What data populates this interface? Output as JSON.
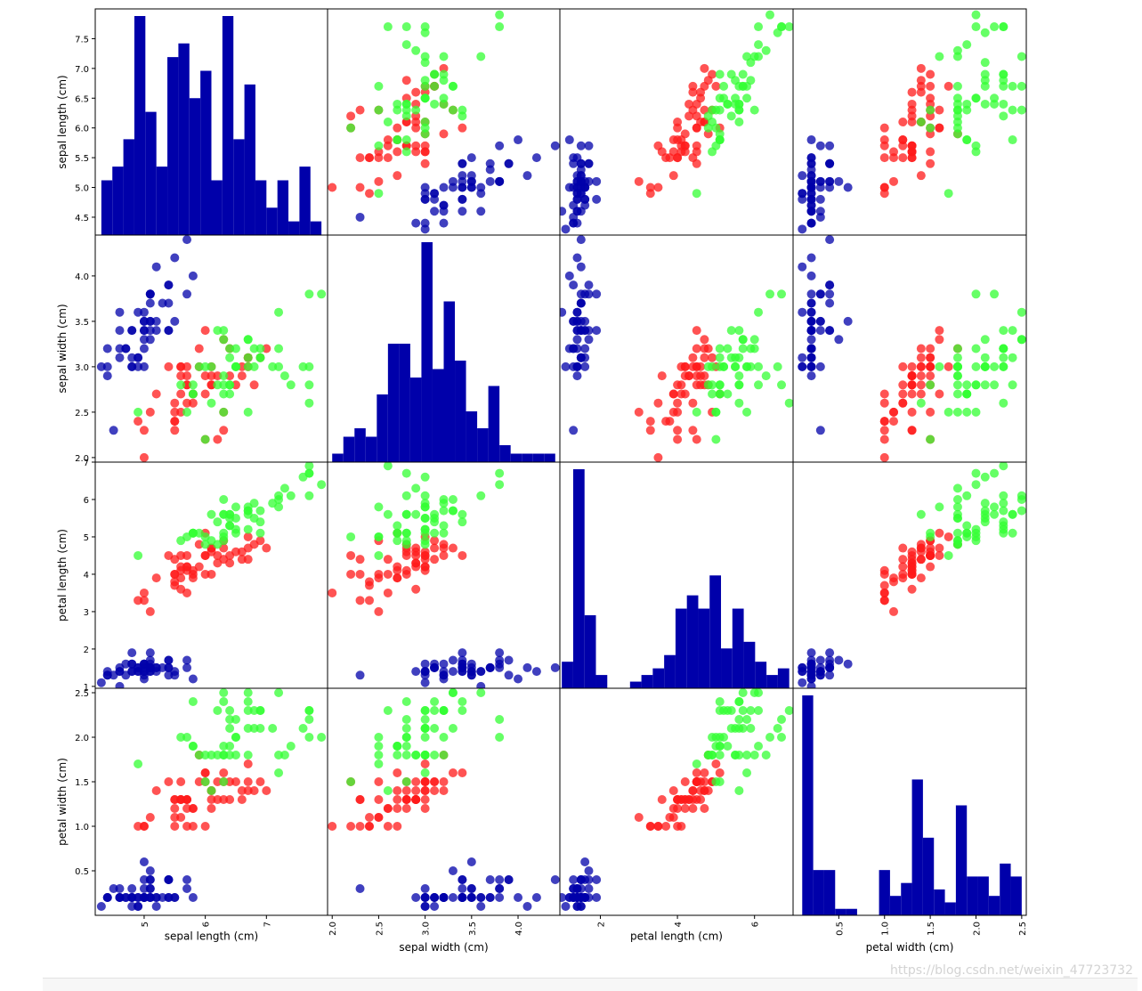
{
  "watermark": "https://blog.csdn.net/weixin_47723732",
  "chart_data": {
    "type": "scatter",
    "title": "",
    "variables": [
      "sepal length (cm)",
      "sepal width (cm)",
      "petal length (cm)",
      "petal width (cm)"
    ],
    "ranges": [
      [
        4.2,
        8.0
      ],
      [
        1.95,
        4.45
      ],
      [
        0.95,
        7.0
      ],
      [
        0.0,
        2.55
      ]
    ],
    "ticks": [
      [
        4.5,
        5.0,
        5.5,
        6.0,
        6.5,
        7.0,
        7.5
      ],
      [
        2.0,
        2.5,
        3.0,
        3.5,
        4.0
      ],
      [
        1,
        2,
        3,
        4,
        5,
        6,
        7
      ],
      [
        0.5,
        1.0,
        1.5,
        2.0,
        2.5
      ]
    ],
    "xticks": [
      [
        5,
        6,
        7
      ],
      [
        2.0,
        2.5,
        3.0,
        3.5,
        4.0
      ],
      [
        2,
        4,
        6
      ],
      [
        0.5,
        1.0,
        1.5,
        2.0,
        2.5
      ]
    ],
    "tick_labels_x": [
      [
        "5",
        "6",
        "7"
      ],
      [
        "2.0",
        "2.5",
        "3.0",
        "3.5",
        "4.0"
      ],
      [
        "2",
        "4",
        "6"
      ],
      [
        "0.5",
        "1.0",
        "1.5",
        "2.0",
        "2.5"
      ]
    ],
    "tick_labels_y": [
      [
        "4.5",
        "5.0",
        "5.5",
        "6.0",
        "6.5",
        "7.0",
        "7.5"
      ],
      [
        "2.0",
        "2.5",
        "3.0",
        "3.5",
        "4.0"
      ],
      [
        "1",
        "2",
        "3",
        "4",
        "5",
        "6",
        "7"
      ],
      [
        "0.5",
        "1.0",
        "1.5",
        "2.0",
        "2.5"
      ]
    ],
    "class_colors": [
      "#0000aa",
      "#ff1a1a",
      "#33ff33"
    ],
    "hist_color": "#0000aa",
    "grid": false,
    "legend": "none",
    "classes": [
      {
        "color": "#0000aa",
        "points": [
          [
            5.1,
            3.5,
            1.4,
            0.2
          ],
          [
            4.9,
            3.0,
            1.4,
            0.2
          ],
          [
            4.7,
            3.2,
            1.3,
            0.2
          ],
          [
            4.6,
            3.1,
            1.5,
            0.2
          ],
          [
            5.0,
            3.6,
            1.4,
            0.2
          ],
          [
            5.4,
            3.9,
            1.7,
            0.4
          ],
          [
            4.6,
            3.4,
            1.4,
            0.3
          ],
          [
            5.0,
            3.4,
            1.5,
            0.2
          ],
          [
            4.4,
            2.9,
            1.4,
            0.2
          ],
          [
            4.9,
            3.1,
            1.5,
            0.1
          ],
          [
            5.4,
            3.7,
            1.5,
            0.2
          ],
          [
            4.8,
            3.4,
            1.6,
            0.2
          ],
          [
            4.8,
            3.0,
            1.4,
            0.1
          ],
          [
            4.3,
            3.0,
            1.1,
            0.1
          ],
          [
            5.8,
            4.0,
            1.2,
            0.2
          ],
          [
            5.7,
            4.4,
            1.5,
            0.4
          ],
          [
            5.4,
            3.9,
            1.3,
            0.4
          ],
          [
            5.1,
            3.5,
            1.4,
            0.3
          ],
          [
            5.7,
            3.8,
            1.7,
            0.3
          ],
          [
            5.1,
            3.8,
            1.5,
            0.3
          ],
          [
            5.4,
            3.4,
            1.7,
            0.2
          ],
          [
            5.1,
            3.7,
            1.5,
            0.4
          ],
          [
            4.6,
            3.6,
            1.0,
            0.2
          ],
          [
            5.1,
            3.3,
            1.7,
            0.5
          ],
          [
            4.8,
            3.4,
            1.9,
            0.2
          ],
          [
            5.0,
            3.0,
            1.6,
            0.2
          ],
          [
            5.0,
            3.4,
            1.6,
            0.4
          ],
          [
            5.2,
            3.5,
            1.5,
            0.2
          ],
          [
            5.2,
            3.4,
            1.4,
            0.2
          ],
          [
            4.7,
            3.2,
            1.6,
            0.2
          ],
          [
            4.8,
            3.1,
            1.6,
            0.2
          ],
          [
            5.4,
            3.4,
            1.5,
            0.4
          ],
          [
            5.2,
            4.1,
            1.5,
            0.1
          ],
          [
            5.5,
            4.2,
            1.4,
            0.2
          ],
          [
            4.9,
            3.1,
            1.5,
            0.2
          ],
          [
            5.0,
            3.2,
            1.2,
            0.2
          ],
          [
            5.5,
            3.5,
            1.3,
            0.2
          ],
          [
            4.9,
            3.6,
            1.4,
            0.1
          ],
          [
            4.4,
            3.0,
            1.3,
            0.2
          ],
          [
            5.1,
            3.4,
            1.5,
            0.2
          ],
          [
            5.0,
            3.5,
            1.3,
            0.3
          ],
          [
            4.5,
            2.3,
            1.3,
            0.3
          ],
          [
            4.4,
            3.2,
            1.3,
            0.2
          ],
          [
            5.0,
            3.5,
            1.6,
            0.6
          ],
          [
            5.1,
            3.8,
            1.9,
            0.4
          ],
          [
            4.8,
            3.0,
            1.4,
            0.3
          ],
          [
            5.1,
            3.8,
            1.6,
            0.2
          ],
          [
            4.6,
            3.2,
            1.4,
            0.2
          ],
          [
            5.3,
            3.7,
            1.5,
            0.2
          ],
          [
            5.0,
            3.3,
            1.4,
            0.2
          ]
        ]
      },
      {
        "color": "#ff1a1a",
        "points": [
          [
            7.0,
            3.2,
            4.7,
            1.4
          ],
          [
            6.4,
            3.2,
            4.5,
            1.5
          ],
          [
            6.9,
            3.1,
            4.9,
            1.5
          ],
          [
            5.5,
            2.3,
            4.0,
            1.3
          ],
          [
            6.5,
            2.8,
            4.6,
            1.5
          ],
          [
            5.7,
            2.8,
            4.5,
            1.3
          ],
          [
            6.3,
            3.3,
            4.7,
            1.6
          ],
          [
            4.9,
            2.4,
            3.3,
            1.0
          ],
          [
            6.6,
            2.9,
            4.6,
            1.3
          ],
          [
            5.2,
            2.7,
            3.9,
            1.4
          ],
          [
            5.0,
            2.0,
            3.5,
            1.0
          ],
          [
            5.9,
            3.0,
            4.2,
            1.5
          ],
          [
            6.0,
            2.2,
            4.0,
            1.0
          ],
          [
            6.1,
            2.9,
            4.7,
            1.4
          ],
          [
            5.6,
            2.9,
            3.6,
            1.3
          ],
          [
            6.7,
            3.1,
            4.4,
            1.4
          ],
          [
            5.6,
            3.0,
            4.5,
            1.5
          ],
          [
            5.8,
            2.7,
            4.1,
            1.0
          ],
          [
            6.2,
            2.2,
            4.5,
            1.5
          ],
          [
            5.6,
            2.5,
            3.9,
            1.1
          ],
          [
            5.9,
            3.2,
            4.8,
            1.8
          ],
          [
            6.1,
            2.8,
            4.0,
            1.3
          ],
          [
            6.3,
            2.5,
            4.9,
            1.5
          ],
          [
            6.1,
            2.8,
            4.7,
            1.2
          ],
          [
            6.4,
            2.9,
            4.3,
            1.3
          ],
          [
            6.6,
            3.0,
            4.4,
            1.4
          ],
          [
            6.8,
            2.8,
            4.8,
            1.4
          ],
          [
            6.7,
            3.0,
            5.0,
            1.7
          ],
          [
            6.0,
            2.9,
            4.5,
            1.5
          ],
          [
            5.7,
            2.6,
            3.5,
            1.0
          ],
          [
            5.5,
            2.4,
            3.8,
            1.1
          ],
          [
            5.5,
            2.4,
            3.7,
            1.0
          ],
          [
            5.8,
            2.7,
            3.9,
            1.2
          ],
          [
            6.0,
            2.7,
            5.1,
            1.6
          ],
          [
            5.4,
            3.0,
            4.5,
            1.5
          ],
          [
            6.0,
            3.4,
            4.5,
            1.6
          ],
          [
            6.7,
            3.1,
            4.7,
            1.5
          ],
          [
            6.3,
            2.3,
            4.4,
            1.3
          ],
          [
            5.6,
            3.0,
            4.1,
            1.3
          ],
          [
            5.5,
            2.5,
            4.0,
            1.3
          ],
          [
            5.5,
            2.6,
            4.4,
            1.2
          ],
          [
            6.1,
            3.0,
            4.6,
            1.4
          ],
          [
            5.8,
            2.6,
            4.0,
            1.2
          ],
          [
            5.0,
            2.3,
            3.3,
            1.0
          ],
          [
            5.6,
            2.7,
            4.2,
            1.3
          ],
          [
            5.7,
            3.0,
            4.2,
            1.2
          ],
          [
            5.7,
            2.9,
            4.2,
            1.3
          ],
          [
            6.2,
            2.9,
            4.3,
            1.3
          ],
          [
            5.1,
            2.5,
            3.0,
            1.1
          ],
          [
            5.7,
            2.8,
            4.1,
            1.3
          ]
        ]
      },
      {
        "color": "#33ff33",
        "points": [
          [
            6.3,
            3.3,
            6.0,
            2.5
          ],
          [
            5.8,
            2.7,
            5.1,
            1.9
          ],
          [
            7.1,
            3.0,
            5.9,
            2.1
          ],
          [
            6.3,
            2.9,
            5.6,
            1.8
          ],
          [
            6.5,
            3.0,
            5.8,
            2.2
          ],
          [
            7.6,
            3.0,
            6.6,
            2.1
          ],
          [
            4.9,
            2.5,
            4.5,
            1.7
          ],
          [
            7.3,
            2.9,
            6.3,
            1.8
          ],
          [
            6.7,
            2.5,
            5.8,
            1.8
          ],
          [
            7.2,
            3.6,
            6.1,
            2.5
          ],
          [
            6.5,
            3.2,
            5.1,
            2.0
          ],
          [
            6.4,
            2.7,
            5.3,
            1.9
          ],
          [
            6.8,
            3.0,
            5.5,
            2.1
          ],
          [
            5.7,
            2.5,
            5.0,
            2.0
          ],
          [
            5.8,
            2.8,
            5.1,
            2.4
          ],
          [
            6.4,
            3.2,
            5.3,
            2.3
          ],
          [
            6.5,
            3.0,
            5.5,
            1.8
          ],
          [
            7.7,
            3.8,
            6.7,
            2.2
          ],
          [
            7.7,
            2.6,
            6.9,
            2.3
          ],
          [
            6.0,
            2.2,
            5.0,
            1.5
          ],
          [
            6.9,
            3.2,
            5.7,
            2.3
          ],
          [
            5.6,
            2.8,
            4.9,
            2.0
          ],
          [
            7.7,
            2.8,
            6.7,
            2.0
          ],
          [
            6.3,
            2.7,
            4.9,
            1.8
          ],
          [
            6.7,
            3.3,
            5.7,
            2.1
          ],
          [
            7.2,
            3.2,
            6.0,
            1.8
          ],
          [
            6.2,
            2.8,
            4.8,
            1.8
          ],
          [
            6.1,
            3.0,
            4.9,
            1.8
          ],
          [
            6.4,
            2.8,
            5.6,
            2.1
          ],
          [
            7.2,
            3.0,
            5.8,
            1.6
          ],
          [
            7.4,
            2.8,
            6.1,
            1.9
          ],
          [
            7.9,
            3.8,
            6.4,
            2.0
          ],
          [
            6.4,
            2.8,
            5.6,
            2.2
          ],
          [
            6.3,
            2.8,
            5.1,
            1.5
          ],
          [
            6.1,
            2.6,
            5.6,
            1.4
          ],
          [
            7.7,
            3.0,
            6.1,
            2.3
          ],
          [
            6.3,
            3.4,
            5.6,
            2.4
          ],
          [
            6.4,
            3.1,
            5.5,
            1.8
          ],
          [
            6.0,
            3.0,
            4.8,
            1.8
          ],
          [
            6.9,
            3.1,
            5.4,
            2.1
          ],
          [
            6.7,
            3.1,
            5.6,
            2.4
          ],
          [
            6.9,
            3.1,
            5.1,
            2.3
          ],
          [
            5.8,
            2.7,
            5.1,
            1.9
          ],
          [
            6.8,
            3.2,
            5.9,
            2.3
          ],
          [
            6.7,
            3.3,
            5.7,
            2.5
          ],
          [
            6.7,
            3.0,
            5.2,
            2.3
          ],
          [
            6.3,
            2.5,
            5.0,
            1.9
          ],
          [
            6.5,
            3.0,
            5.2,
            2.0
          ],
          [
            6.2,
            3.4,
            5.4,
            2.3
          ],
          [
            5.9,
            3.0,
            5.1,
            1.8
          ]
        ]
      }
    ]
  }
}
